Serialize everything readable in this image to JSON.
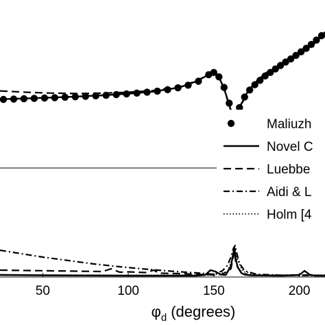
{
  "chart_data": [
    {
      "type": "line",
      "panel": "top",
      "xlim": [
        25,
        215
      ],
      "grid": false,
      "legend_position": "right",
      "legend": [
        {
          "label": "Maliuzh",
          "style": "markers"
        },
        {
          "label": "Novel C",
          "style": "solid"
        },
        {
          "label": "Luebbe",
          "style": "dashed"
        },
        {
          "label": "Aidi & L",
          "style": "dashdot"
        },
        {
          "label": "Holm [4",
          "style": "dotted"
        }
      ],
      "series": [
        {
          "name": "Maliuzh",
          "style": "markers",
          "x": [
            27,
            33,
            39,
            45,
            51,
            57,
            63,
            69,
            75,
            81,
            87,
            93,
            99,
            105,
            111,
            117,
            123,
            129,
            135,
            141,
            147,
            150,
            153,
            156,
            159,
            162,
            165,
            168,
            171,
            174,
            177,
            180,
            183,
            186,
            189,
            192,
            195,
            198,
            201,
            204,
            207,
            210,
            213
          ],
          "y": [
            -2.97,
            -2.93,
            -2.89,
            -2.85,
            -2.81,
            -2.77,
            -2.72,
            -2.67,
            -2.62,
            -2.56,
            -2.49,
            -2.42,
            -2.34,
            -2.25,
            -2.14,
            -2.02,
            -1.86,
            -1.65,
            -1.35,
            -0.9,
            -0.15,
            0.1,
            -0.4,
            -1.6,
            -3.4,
            -5.3,
            -3.9,
            -2.7,
            -1.9,
            -1.3,
            -0.8,
            -0.3,
            0.1,
            0.5,
            0.9,
            1.3,
            1.65,
            2.05,
            2.45,
            2.85,
            3.3,
            3.8,
            4.3
          ]
        },
        {
          "name": "Novel C",
          "style": "solid",
          "x": [
            25,
            40,
            55,
            70,
            85,
            100,
            115,
            130,
            140,
            146,
            150,
            153,
            156,
            159,
            162,
            164,
            166,
            170,
            175,
            180,
            190,
            200,
            210,
            215
          ],
          "y": [
            -2.95,
            -2.86,
            -2.76,
            -2.64,
            -2.5,
            -2.32,
            -2.07,
            -1.6,
            -0.9,
            -0.25,
            0.05,
            -0.45,
            -1.7,
            -3.6,
            -5.4,
            -4.6,
            -3.5,
            -2.0,
            -0.9,
            0.0,
            0.95,
            2.25,
            3.6,
            4.7
          ]
        },
        {
          "name": "Luebbe",
          "style": "dashed",
          "x": [
            25,
            40,
            55,
            70,
            85,
            100,
            115,
            130,
            140,
            146,
            150,
            153,
            156,
            159,
            162,
            164,
            166,
            170,
            175,
            180,
            190,
            200,
            210,
            215
          ],
          "y": [
            -2.0,
            -2.15,
            -2.25,
            -2.3,
            -2.25,
            -2.15,
            -1.95,
            -1.52,
            -0.85,
            -0.2,
            0.1,
            -0.42,
            -1.75,
            -3.7,
            -5.5,
            -4.7,
            -3.6,
            -2.05,
            -0.95,
            -0.02,
            0.95,
            2.25,
            3.6,
            4.7
          ]
        },
        {
          "name": "Aidi & L",
          "style": "dashdot",
          "x": [
            25,
            40,
            55,
            70,
            85,
            100,
            115,
            130,
            140,
            146,
            150,
            153,
            156,
            159,
            162,
            164,
            166,
            170,
            175,
            180,
            190,
            200,
            210,
            215
          ],
          "y": [
            -2.96,
            -2.86,
            -2.76,
            -2.64,
            -2.5,
            -2.32,
            -2.07,
            -1.6,
            -0.9,
            -0.25,
            0.05,
            -0.45,
            -1.7,
            -3.6,
            -5.35,
            -4.6,
            -3.5,
            -2.0,
            -0.9,
            0.0,
            0.95,
            2.25,
            3.6,
            4.7
          ]
        },
        {
          "name": "Holm [4",
          "style": "dotted",
          "x": [
            25,
            40,
            55,
            70,
            85,
            100,
            115,
            130,
            140,
            146,
            150,
            153,
            156,
            159,
            162,
            164,
            166,
            170,
            175,
            180,
            190,
            200,
            210,
            215
          ],
          "y": [
            -2.94,
            -2.85,
            -2.75,
            -2.63,
            -2.49,
            -2.31,
            -2.06,
            -1.59,
            -0.9,
            -0.25,
            0.06,
            -0.44,
            -1.68,
            -3.55,
            -5.3,
            -4.55,
            -3.45,
            -1.98,
            -0.9,
            0.0,
            0.95,
            2.25,
            3.6,
            4.7
          ]
        }
      ]
    },
    {
      "type": "line",
      "panel": "bottom",
      "xlabel": "φ_d (degrees)",
      "xlabel_symbol": "φ",
      "xlabel_subscript": "d",
      "xlabel_units": "(degrees)",
      "xlim": [
        25,
        215
      ],
      "xticks": [
        50,
        100,
        150,
        200
      ],
      "xticklabels": [
        "50",
        "100",
        "150",
        "200"
      ],
      "grid": false,
      "series": [
        {
          "name": "Novel C",
          "style": "solid",
          "x": [
            25,
            50,
            100,
            140,
            145,
            148,
            151,
            154,
            157,
            160,
            162,
            163,
            164,
            166,
            168,
            172,
            190,
            200,
            203,
            206,
            209,
            215
          ],
          "y": [
            0.3,
            0.25,
            0.2,
            0.2,
            0.3,
            1.0,
            0.8,
            0.35,
            0.3,
            1.6,
            4.3,
            2.4,
            1.4,
            0.6,
            0.35,
            0.25,
            0.2,
            0.3,
            0.9,
            0.35,
            0.2,
            0.2
          ]
        },
        {
          "name": "Luebbe",
          "style": "dashed",
          "x": [
            25,
            40,
            55,
            70,
            85,
            90,
            95,
            100,
            110,
            115,
            118,
            120,
            130,
            140,
            150,
            155,
            160,
            162,
            163,
            166,
            170,
            185,
            200,
            215
          ],
          "y": [
            1.0,
            0.95,
            0.9,
            0.85,
            0.8,
            1.2,
            0.7,
            0.75,
            0.65,
            1.0,
            0.55,
            0.55,
            0.5,
            0.4,
            0.3,
            0.4,
            1.2,
            3.8,
            1.8,
            0.7,
            0.3,
            0.2,
            0.3,
            0.2
          ]
        },
        {
          "name": "Aidi & L",
          "style": "dashdot",
          "x": [
            25,
            35,
            50,
            65,
            80,
            95,
            110,
            125,
            140,
            150,
            155,
            158,
            160,
            161.5,
            162.5,
            163.5,
            165,
            168,
            175,
            190,
            215
          ],
          "y": [
            3.9,
            3.5,
            2.9,
            2.4,
            1.9,
            1.5,
            1.15,
            0.85,
            0.6,
            0.4,
            0.9,
            1.7,
            2.9,
            4.2,
            4.6,
            3.4,
            2.0,
            0.9,
            0.4,
            0.25,
            0.2
          ]
        },
        {
          "name": "Holm [4",
          "style": "dotted",
          "x": [
            25,
            50,
            100,
            150,
            158,
            161,
            162.5,
            164,
            167,
            175,
            215
          ],
          "y": [
            0.35,
            0.3,
            0.25,
            0.3,
            0.8,
            2.7,
            3.9,
            2.4,
            0.8,
            0.3,
            0.3
          ]
        }
      ]
    }
  ]
}
